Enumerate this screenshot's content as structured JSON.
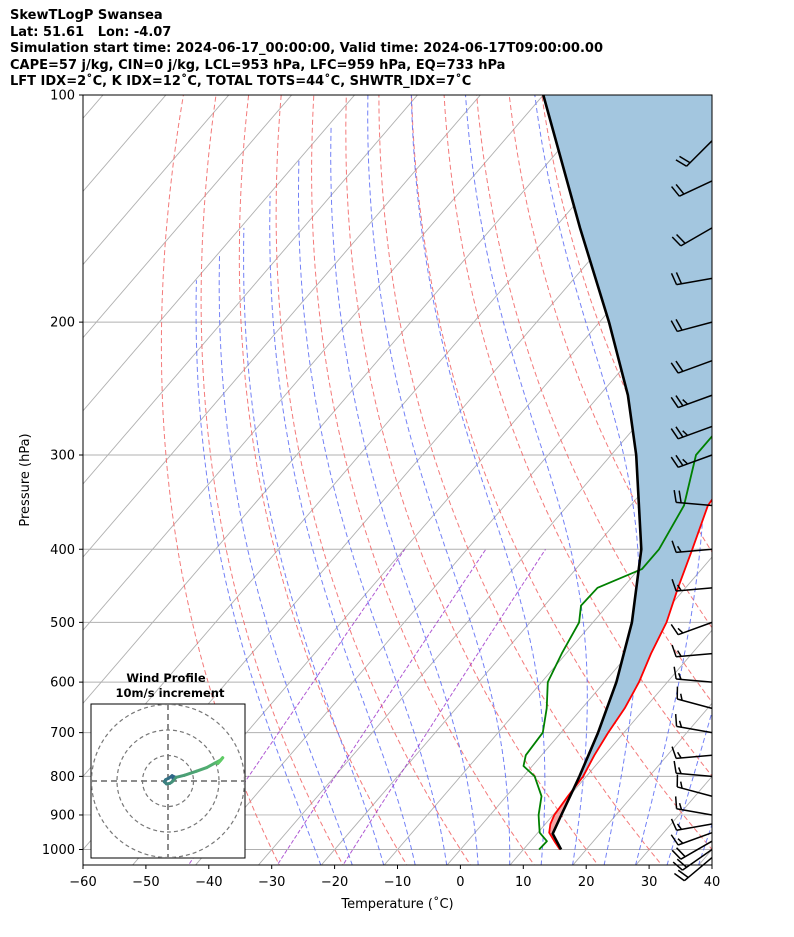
{
  "header": {
    "line1": "SkewTLogP Swansea",
    "line2": "Lat: 51.61   Lon: -4.07",
    "line3": "Simulation start time: 2024-06-17_00:00:00, Valid time: 2024-06-17T09:00:00.00",
    "line4": "CAPE=57 j/kg, CIN=0 j/kg, LCL=953 hPa, LFC=959 hPa, EQ=733 hPa",
    "line5": "LFT IDX=2˚C, K IDX=12˚C, TOTAL TOTS=44˚C, SHWTR_IDX=7˚C"
  },
  "chart_data": {
    "type": "skew-t log-p",
    "xlabel": "Temperature (˚C)",
    "ylabel": "Pressure (hPa)",
    "xlim": [
      -60,
      40
    ],
    "ylim_hpa": [
      1050,
      100
    ],
    "x_ticks": [
      "−60",
      "−50",
      "−40",
      "−30",
      "−20",
      "−10",
      "0",
      "10",
      "20",
      "30",
      "40"
    ],
    "y_ticks": [
      100,
      200,
      300,
      400,
      500,
      600,
      700,
      800,
      900,
      1000
    ],
    "grid": true,
    "colors": {
      "temperature": "#ff0000",
      "dewpoint": "#008000",
      "parcel": "#000000",
      "cape_fill": "#a3c6df",
      "dry_adiabat": "#f26b6b",
      "moist_adiabat": "#5b6bf5",
      "mixing_ratio": "#9b30c8"
    },
    "temperature_profile": [
      {
        "p": 1000,
        "t": 15.8
      },
      {
        "p": 975,
        "t": 13.8
      },
      {
        "p": 950,
        "t": 11.8
      },
      {
        "p": 925,
        "t": 10.8
      },
      {
        "p": 900,
        "t": 10.2
      },
      {
        "p": 850,
        "t": 9.8
      },
      {
        "p": 800,
        "t": 9.5
      },
      {
        "p": 750,
        "t": 8.4
      },
      {
        "p": 700,
        "t": 7.5
      },
      {
        "p": 650,
        "t": 6.8
      },
      {
        "p": 600,
        "t": 5.5
      },
      {
        "p": 550,
        "t": 3.5
      },
      {
        "p": 500,
        "t": 1.7
      },
      {
        "p": 450,
        "t": -1.2
      },
      {
        "p": 400,
        "t": -4.2
      },
      {
        "p": 350,
        "t": -7.7
      },
      {
        "p": 300,
        "t": -9.0
      },
      {
        "p": 275,
        "t": -8.6
      },
      {
        "p": 250,
        "t": -6.3
      },
      {
        "p": 225,
        "t": -1.0
      },
      {
        "p": 200,
        "t": 2.9
      },
      {
        "p": 175,
        "t": 7.6
      },
      {
        "p": 150,
        "t": 11.5
      },
      {
        "p": 125,
        "t": 17.4
      },
      {
        "p": 110,
        "t": 19.1
      },
      {
        "p": 100,
        "t": 21.1
      }
    ],
    "dewpoint_profile": [
      {
        "p": 1000,
        "t": 12.5
      },
      {
        "p": 975,
        "t": 12.6
      },
      {
        "p": 950,
        "t": 10.3
      },
      {
        "p": 925,
        "t": 9.0
      },
      {
        "p": 900,
        "t": 7.7
      },
      {
        "p": 850,
        "t": 5.6
      },
      {
        "p": 800,
        "t": 1.8
      },
      {
        "p": 775,
        "t": -1.4
      },
      {
        "p": 750,
        "t": -2.5
      },
      {
        "p": 700,
        "t": -2.9
      },
      {
        "p": 650,
        "t": -5.6
      },
      {
        "p": 600,
        "t": -9.0
      },
      {
        "p": 550,
        "t": -10.7
      },
      {
        "p": 500,
        "t": -12.2
      },
      {
        "p": 475,
        "t": -14.2
      },
      {
        "p": 450,
        "t": -14.0
      },
      {
        "p": 425,
        "t": -9.5
      },
      {
        "p": 400,
        "t": -9.5
      },
      {
        "p": 350,
        "t": -11.5
      },
      {
        "p": 300,
        "t": -16.5
      },
      {
        "p": 275,
        "t": -16.5
      },
      {
        "p": 250,
        "t": -17.7
      },
      {
        "p": 210,
        "t": -19.5
      },
      {
        "p": 200,
        "t": -21.8
      },
      {
        "p": 175,
        "t": -26.5
      },
      {
        "p": 167,
        "t": -28.4
      },
      {
        "p": 150,
        "t": -29.4
      },
      {
        "p": 125,
        "t": -32.1
      },
      {
        "p": 100,
        "t": -35.3
      }
    ],
    "parcel_profile": [
      {
        "p": 1000,
        "t": 16.0
      },
      {
        "p": 953,
        "t": 12.5
      },
      {
        "p": 900,
        "t": 11.3
      },
      {
        "p": 800,
        "t": 8.9
      },
      {
        "p": 700,
        "t": 5.9
      },
      {
        "p": 600,
        "t": 1.9
      },
      {
        "p": 500,
        "t": -3.8
      },
      {
        "p": 400,
        "t": -12.3
      },
      {
        "p": 300,
        "t": -26.0
      },
      {
        "p": 250,
        "t": -35.5
      },
      {
        "p": 200,
        "t": -48.5
      },
      {
        "p": 150,
        "t": -66.0
      },
      {
        "p": 100,
        "t": -90.0
      }
    ],
    "wind_barbs": [
      {
        "p": 1025,
        "speed_kt": 20,
        "dir_deg": 230
      },
      {
        "p": 1000,
        "speed_kt": 20,
        "dir_deg": 235
      },
      {
        "p": 975,
        "speed_kt": 20,
        "dir_deg": 240
      },
      {
        "p": 950,
        "speed_kt": 15,
        "dir_deg": 250
      },
      {
        "p": 925,
        "speed_kt": 15,
        "dir_deg": 260
      },
      {
        "p": 900,
        "speed_kt": 15,
        "dir_deg": 280
      },
      {
        "p": 850,
        "speed_kt": 15,
        "dir_deg": 285
      },
      {
        "p": 800,
        "speed_kt": 15,
        "dir_deg": 275
      },
      {
        "p": 750,
        "speed_kt": 15,
        "dir_deg": 265
      },
      {
        "p": 700,
        "speed_kt": 15,
        "dir_deg": 280
      },
      {
        "p": 650,
        "speed_kt": 15,
        "dir_deg": 285
      },
      {
        "p": 600,
        "speed_kt": 15,
        "dir_deg": 275
      },
      {
        "p": 550,
        "speed_kt": 15,
        "dir_deg": 265
      },
      {
        "p": 500,
        "speed_kt": 15,
        "dir_deg": 250
      },
      {
        "p": 450,
        "speed_kt": 15,
        "dir_deg": 265
      },
      {
        "p": 400,
        "speed_kt": 15,
        "dir_deg": 265
      },
      {
        "p": 350,
        "speed_kt": 20,
        "dir_deg": 275
      },
      {
        "p": 300,
        "speed_kt": 25,
        "dir_deg": 250
      },
      {
        "p": 275,
        "speed_kt": 25,
        "dir_deg": 250
      },
      {
        "p": 250,
        "speed_kt": 25,
        "dir_deg": 250
      },
      {
        "p": 225,
        "speed_kt": 20,
        "dir_deg": 250
      },
      {
        "p": 200,
        "speed_kt": 20,
        "dir_deg": 255
      },
      {
        "p": 175,
        "speed_kt": 20,
        "dir_deg": 260
      },
      {
        "p": 150,
        "speed_kt": 20,
        "dir_deg": 240
      },
      {
        "p": 130,
        "speed_kt": 20,
        "dir_deg": 245
      },
      {
        "p": 115,
        "speed_kt": 20,
        "dir_deg": 225
      }
    ],
    "inset": {
      "title_line1": "Wind Profile",
      "title_line2": "10m/s increment",
      "ring_count": 3,
      "hodograph_uv": [
        [
          1.2,
          0.6
        ],
        [
          1.6,
          1.0
        ],
        [
          1.0,
          1.3
        ],
        [
          0.2,
          0.7
        ],
        [
          -0.6,
          0.3
        ],
        [
          -0.9,
          -0.2
        ],
        [
          -0.4,
          -0.7
        ],
        [
          0.4,
          -0.6
        ],
        [
          1.0,
          -0.2
        ],
        [
          2.0,
          0.9
        ],
        [
          4.0,
          1.4
        ],
        [
          7.0,
          2.4
        ],
        [
          9.5,
          3.3
        ],
        [
          11.5,
          4.4
        ],
        [
          13.0,
          5.2
        ],
        [
          12.2,
          4.3
        ],
        [
          13.4,
          5.7
        ],
        [
          12.5,
          4.6
        ]
      ]
    }
  }
}
